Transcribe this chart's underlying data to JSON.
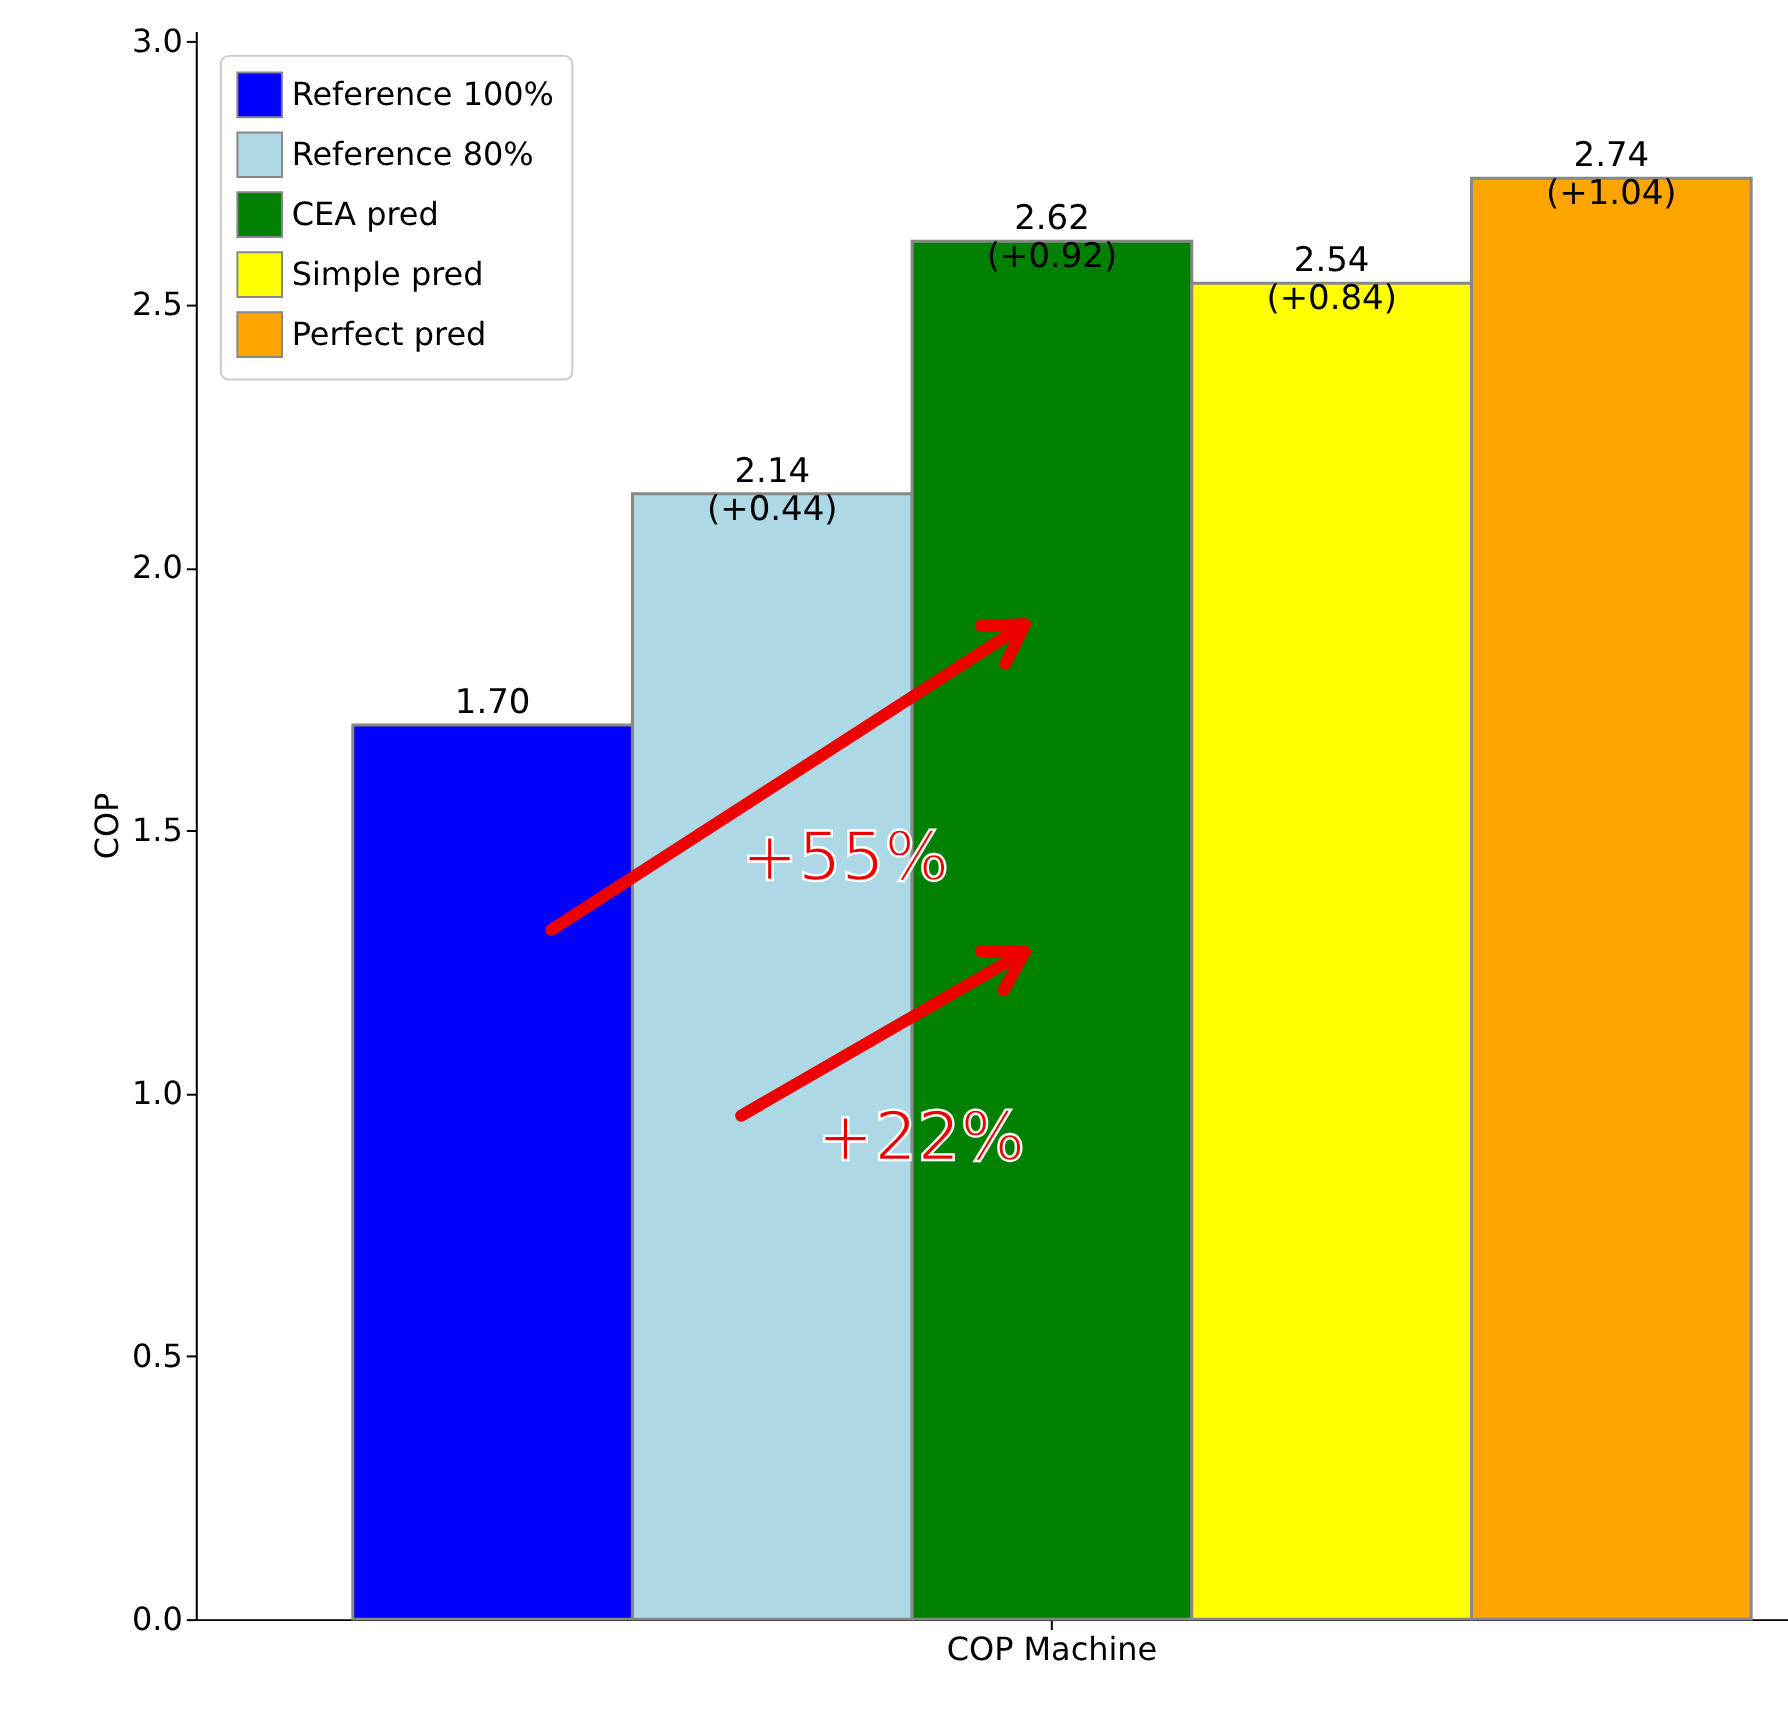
{
  "chart_data": {
    "type": "bar",
    "ylabel": "COP",
    "categories": [
      "COP Machine"
    ],
    "series": [
      {
        "name": "Reference 100%",
        "color": "#0000ff",
        "values": [
          1.7
        ],
        "value_labels": [
          "1.70"
        ]
      },
      {
        "name": "Reference 80%",
        "color": "#add8e6",
        "values": [
          2.14
        ],
        "value_labels": [
          "2.14\n(+0.44)"
        ]
      },
      {
        "name": "CEA pred",
        "color": "#008000",
        "values": [
          2.62
        ],
        "value_labels": [
          "2.62\n(+0.92)"
        ]
      },
      {
        "name": "Simple pred",
        "color": "#ffff00",
        "values": [
          2.54
        ],
        "value_labels": [
          "2.54\n(+0.84)"
        ]
      },
      {
        "name": "Perfect pred",
        "color": "#ffa500",
        "values": [
          2.74
        ],
        "value_labels": [
          "2.74\n(+1.04)"
        ]
      }
    ],
    "ylim": [
      0,
      3.02
    ],
    "yticks": [
      {
        "value": 0,
        "label": "0.0"
      },
      {
        "value": 0.5,
        "label": "0.5"
      },
      {
        "value": 1,
        "label": "1.0"
      },
      {
        "value": 1.5,
        "label": "1.5"
      },
      {
        "value": 2,
        "label": "2.0"
      },
      {
        "value": 2.5,
        "label": "2.5"
      },
      {
        "value": 3,
        "label": "3.0"
      }
    ],
    "annotations": [
      "+55%",
      "+22%"
    ],
    "legend": "top left",
    "grid": false
  }
}
